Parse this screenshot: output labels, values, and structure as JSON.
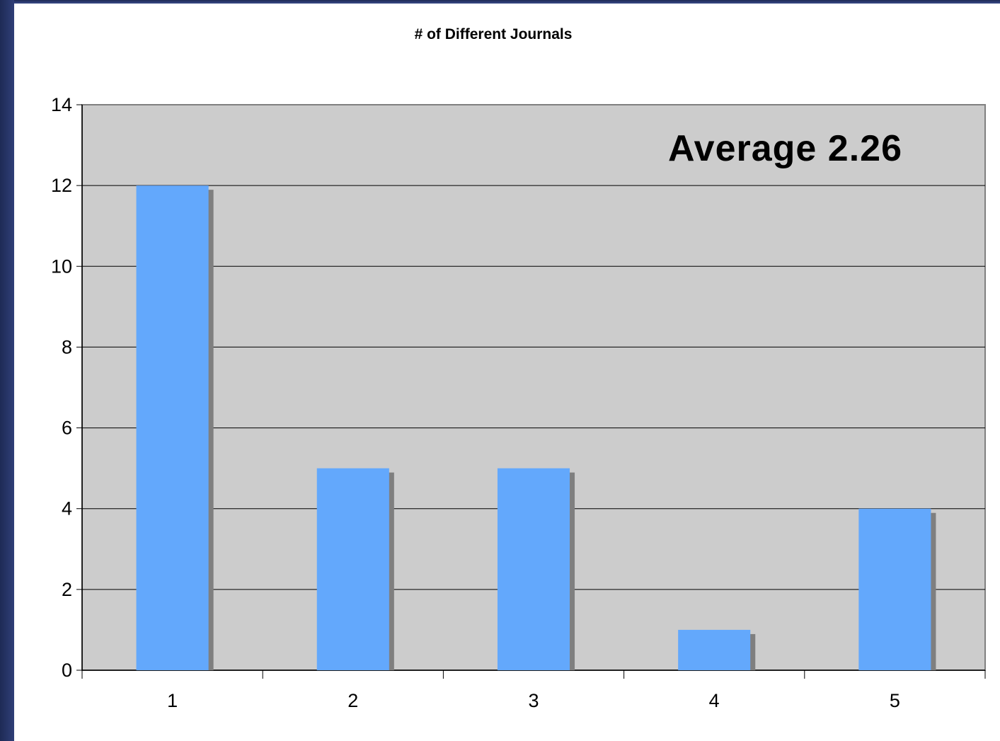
{
  "chart_data": {
    "type": "bar",
    "title": "# of Different Journals",
    "xlabel": "",
    "ylabel": "",
    "categories": [
      "1",
      "2",
      "3",
      "4",
      "5"
    ],
    "values": [
      12,
      5,
      5,
      1,
      4
    ],
    "ylim": [
      0,
      14
    ],
    "yticks": [
      "0",
      "2",
      "4",
      "6",
      "8",
      "10",
      "12",
      "14"
    ],
    "grid": true,
    "annotation": "Average 2.26",
    "colors": {
      "bar": "#63a8fc",
      "bar_shadow": "#7f7f7f",
      "plot_background": "#cccccc",
      "frame": "#1e2a55"
    }
  }
}
